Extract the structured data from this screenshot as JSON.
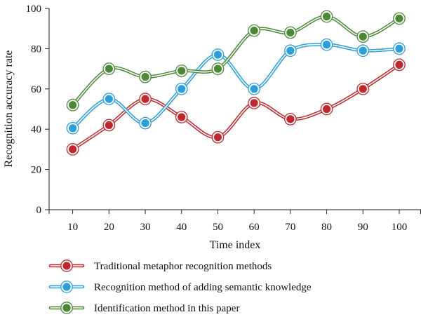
{
  "chart_data": {
    "type": "line",
    "xlabel": "Time index",
    "ylabel": "Recognition accuracy rate",
    "x": [
      10,
      20,
      30,
      40,
      50,
      60,
      70,
      80,
      90,
      100
    ],
    "xlim": [
      3.5,
      106
    ],
    "ylim": [
      0,
      100
    ],
    "yticks": [
      0,
      20,
      40,
      60,
      80,
      100
    ],
    "xticks": [
      10,
      20,
      30,
      40,
      50,
      60,
      70,
      80,
      90,
      100
    ],
    "grid": false,
    "legend_position": "bottom",
    "series": [
      {
        "name": "Traditional metaphor recognition methods",
        "color": "#c0282e",
        "values": [
          30,
          42,
          55,
          46,
          36,
          53,
          45,
          50,
          60,
          72
        ]
      },
      {
        "name": "Recognition method of adding semantic knowledge",
        "color": "#2b9fdb",
        "values": [
          40.5,
          55,
          43,
          60,
          77,
          60,
          79,
          82,
          79,
          80
        ]
      },
      {
        "name": "Identification method in this paper",
        "color": "#4a8a35",
        "values": [
          52,
          70,
          66,
          69,
          70,
          89,
          88,
          96,
          86,
          95
        ]
      }
    ]
  }
}
